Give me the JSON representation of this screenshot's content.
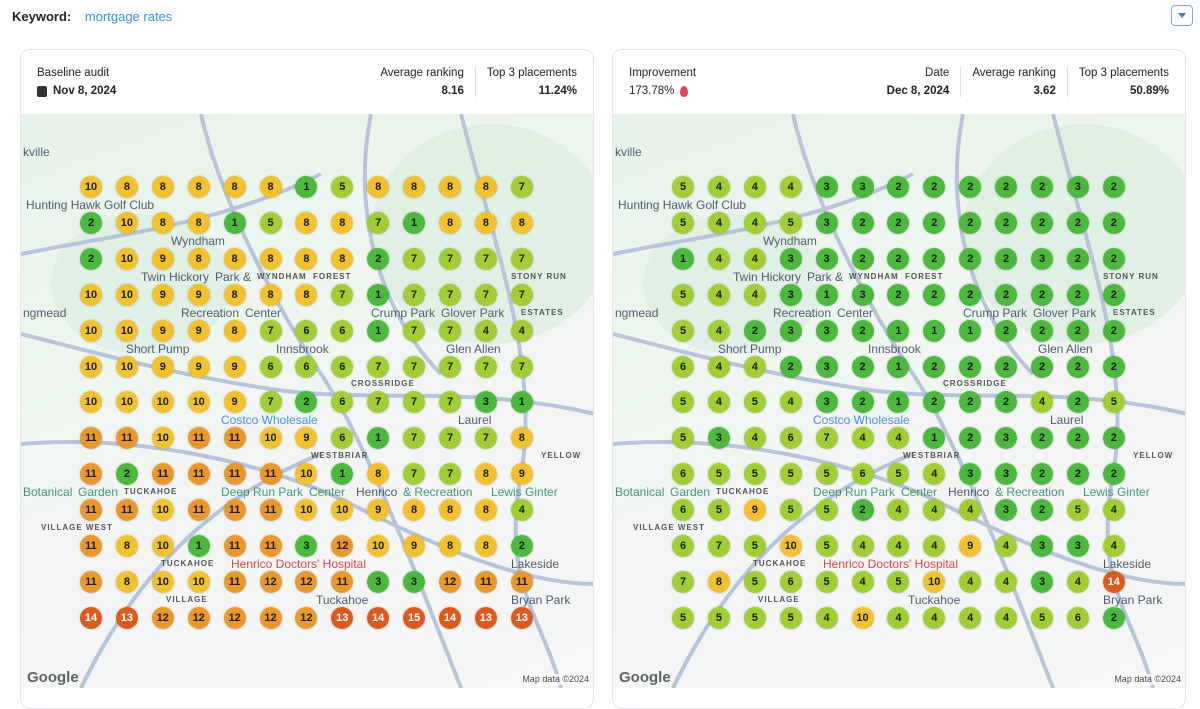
{
  "keyword": {
    "label": "Keyword:",
    "value": "mortgage rates"
  },
  "baseline": {
    "title": "Baseline audit",
    "date": "Nov 8, 2024",
    "avg_label": "Average ranking",
    "avg": "8.16",
    "top3_label": "Top 3 placements",
    "top3": "11.24%",
    "icon": "calendar-icon"
  },
  "current": {
    "improvement_label": "Improvement",
    "improvement": "173.78%",
    "date_label": "Date",
    "date": "Dec 8, 2024",
    "avg_label": "Average ranking",
    "avg": "3.62",
    "top3_label": "Top 3 placements",
    "top3": "50.89%",
    "icon": "flame-icon"
  },
  "colors": {
    "top": "#4cb83e",
    "good": "#9fcf35",
    "mid": "#f2c22e",
    "low": "#e9982b",
    "poor": "#dc5a1e"
  },
  "map": {
    "attribution": "Map data ©2024",
    "logo": "Google",
    "labels": [
      "kville",
      "Hunting Hawk Golf Club",
      "Wyndham",
      "Twin Hickory",
      "Park &",
      "Recreation",
      "Center",
      "WYNDHAM",
      "FOREST",
      "Glover Park",
      "STONY RUN",
      "ESTATES",
      "ngmead",
      "Crump Park",
      "Short Pump",
      "Innsbrook",
      "Glen Allen",
      "Costco Wholesale",
      "Laurel",
      "Henrico",
      "YELLOW",
      "Deep Run Park",
      "& Recreation",
      "Center",
      "Lewis Ginter",
      "Botanical",
      "Garden",
      "TUCKAHOE",
      "VILLAGE WEST",
      "Henrico Doctors' Hospital",
      "Lakeside",
      "TUCKAHOE",
      "VILLAGE",
      "Bryan Park",
      "Tuckahoe",
      "WESTBRIAR",
      "CROSSRIDGE"
    ]
  },
  "grids": {
    "baseline": [
      [
        10,
        8,
        8,
        8,
        8,
        8,
        1,
        5,
        8,
        8,
        8,
        8,
        7
      ],
      [
        2,
        10,
        8,
        8,
        1,
        5,
        8,
        8,
        7,
        1,
        8,
        8,
        8
      ],
      [
        2,
        10,
        9,
        8,
        8,
        8,
        8,
        8,
        2,
        7,
        7,
        7,
        7
      ],
      [
        10,
        10,
        9,
        9,
        8,
        8,
        8,
        7,
        1,
        7,
        7,
        7,
        7
      ],
      [
        10,
        10,
        9,
        9,
        8,
        7,
        6,
        6,
        1,
        7,
        7,
        4,
        4
      ],
      [
        10,
        10,
        9,
        9,
        9,
        6,
        6,
        6,
        7,
        7,
        7,
        7,
        7
      ],
      [
        10,
        10,
        10,
        10,
        9,
        7,
        2,
        6,
        7,
        7,
        7,
        3,
        1
      ],
      [
        11,
        11,
        10,
        11,
        11,
        10,
        9,
        6,
        1,
        7,
        7,
        7,
        8
      ],
      [
        11,
        2,
        11,
        11,
        11,
        11,
        10,
        1,
        8,
        7,
        7,
        8,
        9
      ],
      [
        11,
        11,
        10,
        11,
        11,
        11,
        10,
        10,
        9,
        8,
        8,
        8,
        4
      ],
      [
        11,
        8,
        10,
        1,
        11,
        11,
        3,
        12,
        10,
        9,
        8,
        8,
        2
      ],
      [
        11,
        8,
        10,
        10,
        11,
        12,
        12,
        11,
        3,
        3,
        12,
        11,
        11
      ],
      [
        14,
        13,
        12,
        12,
        12,
        12,
        12,
        13,
        14,
        15,
        14,
        13,
        13
      ]
    ],
    "current": [
      [
        5,
        4,
        4,
        4,
        3,
        3,
        2,
        2,
        2,
        2,
        2,
        3,
        2
      ],
      [
        5,
        4,
        4,
        5,
        3,
        2,
        2,
        2,
        2,
        2,
        2,
        2,
        2
      ],
      [
        1,
        4,
        4,
        3,
        3,
        2,
        2,
        2,
        2,
        2,
        3,
        2,
        2
      ],
      [
        5,
        4,
        4,
        3,
        1,
        3,
        2,
        2,
        2,
        2,
        2,
        2,
        2
      ],
      [
        5,
        4,
        2,
        3,
        3,
        2,
        1,
        1,
        1,
        2,
        2,
        2,
        2
      ],
      [
        6,
        4,
        4,
        2,
        3,
        2,
        1,
        2,
        2,
        2,
        2,
        2,
        2
      ],
      [
        5,
        4,
        5,
        4,
        3,
        2,
        1,
        2,
        2,
        2,
        4,
        2,
        5
      ],
      [
        5,
        3,
        4,
        6,
        7,
        4,
        4,
        1,
        2,
        3,
        2,
        2,
        2
      ],
      [
        6,
        5,
        5,
        5,
        5,
        6,
        5,
        4,
        3,
        3,
        2,
        2,
        2
      ],
      [
        6,
        5,
        9,
        5,
        5,
        2,
        4,
        4,
        4,
        3,
        2,
        5,
        4
      ],
      [
        6,
        7,
        5,
        10,
        5,
        4,
        4,
        4,
        9,
        4,
        3,
        3,
        4
      ],
      [
        7,
        8,
        5,
        6,
        5,
        4,
        5,
        10,
        4,
        4,
        3,
        4,
        14
      ],
      [
        5,
        5,
        5,
        5,
        4,
        10,
        4,
        4,
        4,
        4,
        5,
        6,
        2
      ]
    ]
  }
}
